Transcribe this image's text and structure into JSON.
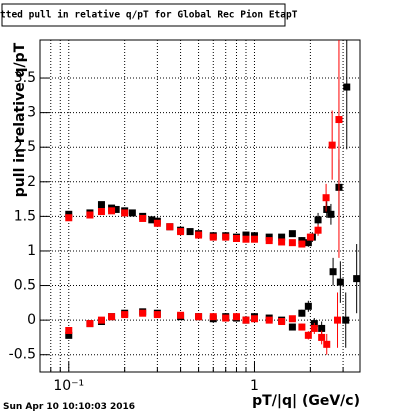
{
  "chart_data": {
    "type": "scatter",
    "title": "Fitted pull in relative q/pT for Global Rec Pion EtapT",
    "x_label": "pT/|q| (GeV/c)",
    "y_label": "pull in relative q/pT",
    "date": "Sun Apr 10 10:10:03 2016",
    "xlog": true,
    "grid": true,
    "xlim": [
      0.07,
      3.7
    ],
    "ylim": [
      -0.75,
      4.05
    ],
    "xticks": [
      {
        "value": 0.1,
        "label": "10⁻¹"
      },
      1
    ],
    "x_minor_ticks": [
      0.08,
      0.09,
      0.2,
      0.3,
      0.4,
      0.5,
      0.6,
      0.7,
      0.8,
      0.9,
      2,
      3
    ],
    "yticks": [
      -0.5,
      0,
      0.5,
      1,
      1.5,
      2,
      2.5,
      3,
      3.5
    ],
    "series": [
      {
        "color": "#000000",
        "x": [
          0.1,
          0.13,
          0.15,
          0.17,
          0.18,
          0.2,
          0.22,
          0.25,
          0.28,
          0.3,
          0.35,
          0.4,
          0.45,
          0.5,
          0.6,
          0.7,
          0.8,
          0.9,
          1.0,
          1.2,
          1.4,
          1.6,
          1.8,
          1.95,
          2.05,
          2.2,
          2.45,
          2.58,
          2.85,
          3.14
        ],
        "values": [
          1.53,
          1.55,
          1.67,
          1.62,
          1.6,
          1.58,
          1.55,
          1.5,
          1.45,
          1.43,
          1.35,
          1.3,
          1.28,
          1.25,
          1.22,
          1.22,
          1.2,
          1.23,
          1.22,
          1.2,
          1.2,
          1.25,
          1.15,
          1.12,
          1.2,
          1.45,
          1.6,
          1.53,
          1.92,
          3.37
        ],
        "errors": [
          0.04,
          0.04,
          0.03,
          0.03,
          0.03,
          0.03,
          0.03,
          0.02,
          0.02,
          0.02,
          0.02,
          0.02,
          0.02,
          0.02,
          0.02,
          0.02,
          0.02,
          0.02,
          0.02,
          0.02,
          0.03,
          0.04,
          0.05,
          0.06,
          0.07,
          0.1,
          0.12,
          0.15,
          0.4,
          0.9
        ]
      },
      {
        "color": "#ff0000",
        "x": [
          0.1,
          0.13,
          0.15,
          0.17,
          0.2,
          0.25,
          0.3,
          0.35,
          0.4,
          0.5,
          0.6,
          0.7,
          0.8,
          0.9,
          1.0,
          1.2,
          1.4,
          1.6,
          1.8,
          2.0,
          2.2,
          2.43,
          2.62,
          2.85
        ],
        "values": [
          1.48,
          1.52,
          1.57,
          1.58,
          1.55,
          1.47,
          1.4,
          1.35,
          1.28,
          1.23,
          1.2,
          1.2,
          1.18,
          1.17,
          1.17,
          1.15,
          1.13,
          1.12,
          1.1,
          1.2,
          1.3,
          1.77,
          2.53,
          2.9
        ],
        "errors": [
          0.04,
          0.03,
          0.03,
          0.03,
          0.03,
          0.02,
          0.02,
          0.02,
          0.02,
          0.02,
          0.02,
          0.02,
          0.02,
          0.02,
          0.02,
          0.02,
          0.03,
          0.03,
          0.04,
          0.05,
          0.08,
          0.2,
          0.5,
          2.0
        ]
      },
      {
        "color": "#000000",
        "x": [
          0.1,
          0.13,
          0.15,
          0.17,
          0.2,
          0.25,
          0.3,
          0.4,
          0.5,
          0.6,
          0.7,
          0.8,
          0.9,
          1.0,
          1.2,
          1.4,
          1.6,
          1.8,
          1.95,
          2.1,
          2.3,
          2.65,
          2.9,
          3.1,
          3.55
        ],
        "values": [
          -0.22,
          -0.05,
          -0.02,
          0.05,
          0.1,
          0.12,
          0.1,
          0.05,
          0.05,
          0.02,
          0.05,
          0.03,
          0.0,
          0.05,
          0.03,
          0.0,
          -0.1,
          0.1,
          0.2,
          -0.05,
          -0.12,
          0.7,
          0.55,
          0.0,
          0.6
        ],
        "errors": [
          0.04,
          0.03,
          0.03,
          0.03,
          0.02,
          0.02,
          0.02,
          0.02,
          0.02,
          0.02,
          0.02,
          0.02,
          0.02,
          0.02,
          0.03,
          0.03,
          0.04,
          0.05,
          0.08,
          0.08,
          0.1,
          0.2,
          0.3,
          0.4,
          0.5
        ]
      },
      {
        "color": "#ff0000",
        "x": [
          0.1,
          0.13,
          0.15,
          0.17,
          0.2,
          0.25,
          0.3,
          0.4,
          0.5,
          0.6,
          0.7,
          0.8,
          0.9,
          1.0,
          1.2,
          1.4,
          1.6,
          1.8,
          1.95,
          2.1,
          2.3,
          2.45,
          2.8
        ],
        "values": [
          -0.15,
          -0.05,
          0.0,
          0.05,
          0.08,
          0.1,
          0.08,
          0.07,
          0.05,
          0.05,
          0.03,
          0.05,
          0.0,
          0.02,
          0.0,
          -0.02,
          0.02,
          -0.1,
          -0.22,
          -0.12,
          -0.25,
          -0.35,
          0.0
        ],
        "errors": [
          0.04,
          0.03,
          0.03,
          0.02,
          0.02,
          0.02,
          0.02,
          0.02,
          0.02,
          0.02,
          0.02,
          0.02,
          0.02,
          0.02,
          0.02,
          0.03,
          0.03,
          0.05,
          0.06,
          0.08,
          0.1,
          0.15,
          0.4
        ]
      }
    ]
  }
}
